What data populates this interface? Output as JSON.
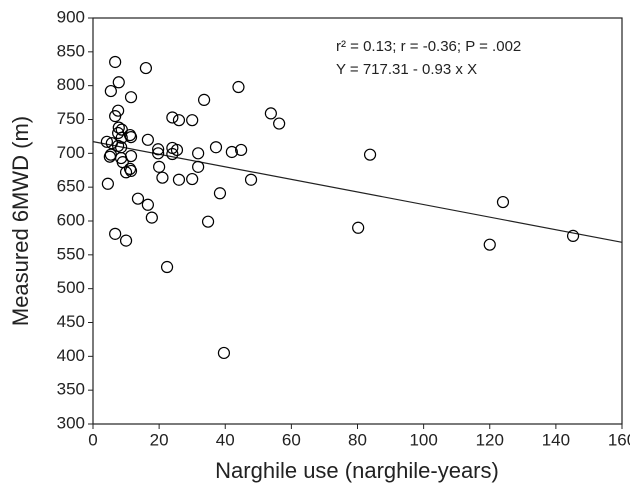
{
  "chart_data": {
    "type": "scatter",
    "xlabel": "Narghile use (narghile-years)",
    "ylabel": "Measured 6MWD (m)",
    "annotations": [
      "r² = 0.13; r = -0.36; P = .002",
      "Y = 717.31 - 0.93 x X"
    ],
    "fit": {
      "intercept": 717.31,
      "slope": -0.93
    },
    "xlim": [
      0,
      160
    ],
    "ylim": [
      300,
      900
    ],
    "xticks": [
      0,
      20,
      40,
      60,
      80,
      100,
      120,
      140,
      160
    ],
    "yticks": [
      300,
      350,
      400,
      450,
      500,
      550,
      600,
      650,
      700,
      750,
      800,
      850,
      900
    ],
    "color": "#000000",
    "x": [
      6.7,
      16,
      7.8,
      5.4,
      11.5,
      44,
      33.6,
      53.8,
      56.3,
      7.6,
      6.7,
      24,
      26,
      30,
      7.8,
      8.7,
      7.6,
      11.2,
      11.5,
      8.7,
      4.2,
      5.7,
      16.6,
      7.6,
      8.5,
      19.7,
      24,
      25.4,
      37.2,
      44.8,
      42,
      31.8,
      24,
      19.7,
      5.4,
      5.1,
      11.5,
      8.5,
      83.8,
      9,
      20,
      31.8,
      11.2,
      10,
      11.5,
      21,
      30,
      26,
      47.8,
      4.5,
      38.4,
      13.6,
      16.6,
      124,
      17.8,
      34.8,
      80.2,
      6.7,
      145.2,
      120,
      10,
      22.4,
      39.6
    ],
    "y": [
      835,
      826,
      805,
      792,
      783,
      798,
      779,
      759,
      744,
      763,
      755,
      753,
      749,
      749,
      738,
      735,
      730,
      727,
      724,
      723,
      717,
      715,
      720,
      711,
      709,
      706,
      708,
      705,
      709,
      705,
      702,
      700,
      699,
      700,
      698,
      695,
      696,
      693,
      698,
      687,
      680,
      680,
      677,
      672,
      674,
      664,
      662,
      661,
      661,
      655,
      641,
      633,
      624,
      628,
      605,
      599,
      590,
      581,
      578,
      565,
      571,
      532,
      405
    ]
  }
}
